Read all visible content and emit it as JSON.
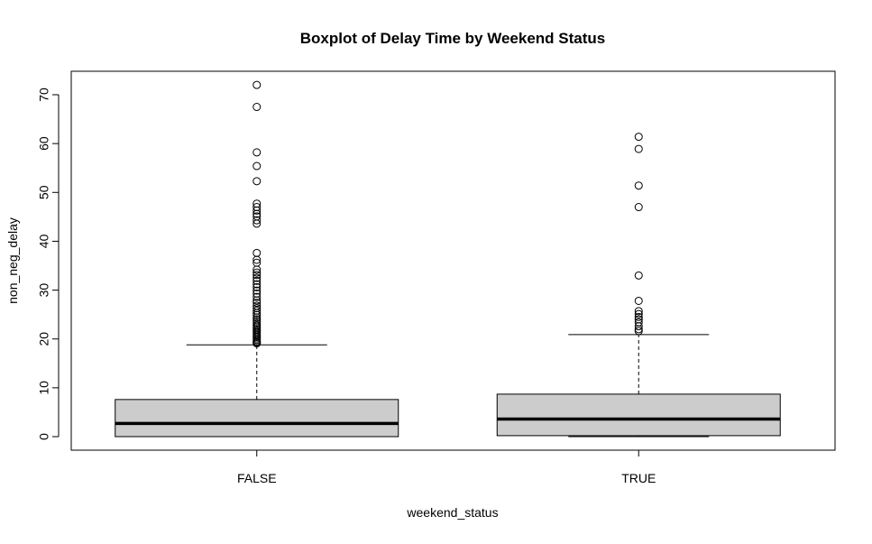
{
  "chart_data": {
    "type": "boxplot",
    "title": "Boxplot of Delay Time by Weekend Status",
    "xlabel": "weekend_status",
    "ylabel": "non_neg_delay",
    "categories": [
      "FALSE",
      "TRUE"
    ],
    "ylim": [
      -3,
      75
    ],
    "yticks": [
      "0",
      "10",
      "20",
      "30",
      "40",
      "50",
      "60",
      "70"
    ],
    "box_fill": "#cccccc",
    "grid": false,
    "boxes": [
      {
        "name": "FALSE",
        "whisker_low": 0,
        "q1": 0,
        "median": 2.7,
        "q3": 7.6,
        "whisker_high": 18.8,
        "outliers": [
          19.1,
          19.3,
          19.5,
          19.8,
          20.1,
          20.4,
          20.7,
          21.0,
          21.3,
          21.6,
          21.9,
          22.2,
          22.5,
          22.8,
          23.2,
          23.6,
          24.0,
          24.4,
          24.9,
          25.3,
          25.8,
          26.3,
          26.8,
          27.4,
          27.9,
          28.6,
          29.3,
          29.9,
          30.6,
          31.2,
          31.9,
          32.5,
          33.1,
          33.6,
          34.2,
          35.6,
          36.2,
          37.6,
          43.6,
          44.3,
          45.1,
          45.6,
          46.3,
          47.0,
          47.7,
          52.3,
          55.4,
          58.2,
          67.5,
          72.0
        ]
      },
      {
        "name": "TRUE",
        "whisker_low": 0,
        "q1": 0.2,
        "median": 3.6,
        "q3": 8.7,
        "whisker_high": 20.9,
        "outliers": [
          21.6,
          22.0,
          22.6,
          23.4,
          24.0,
          24.5,
          25.1,
          25.7,
          27.8,
          33.0,
          47.0,
          51.4,
          58.9,
          61.4
        ]
      }
    ]
  }
}
